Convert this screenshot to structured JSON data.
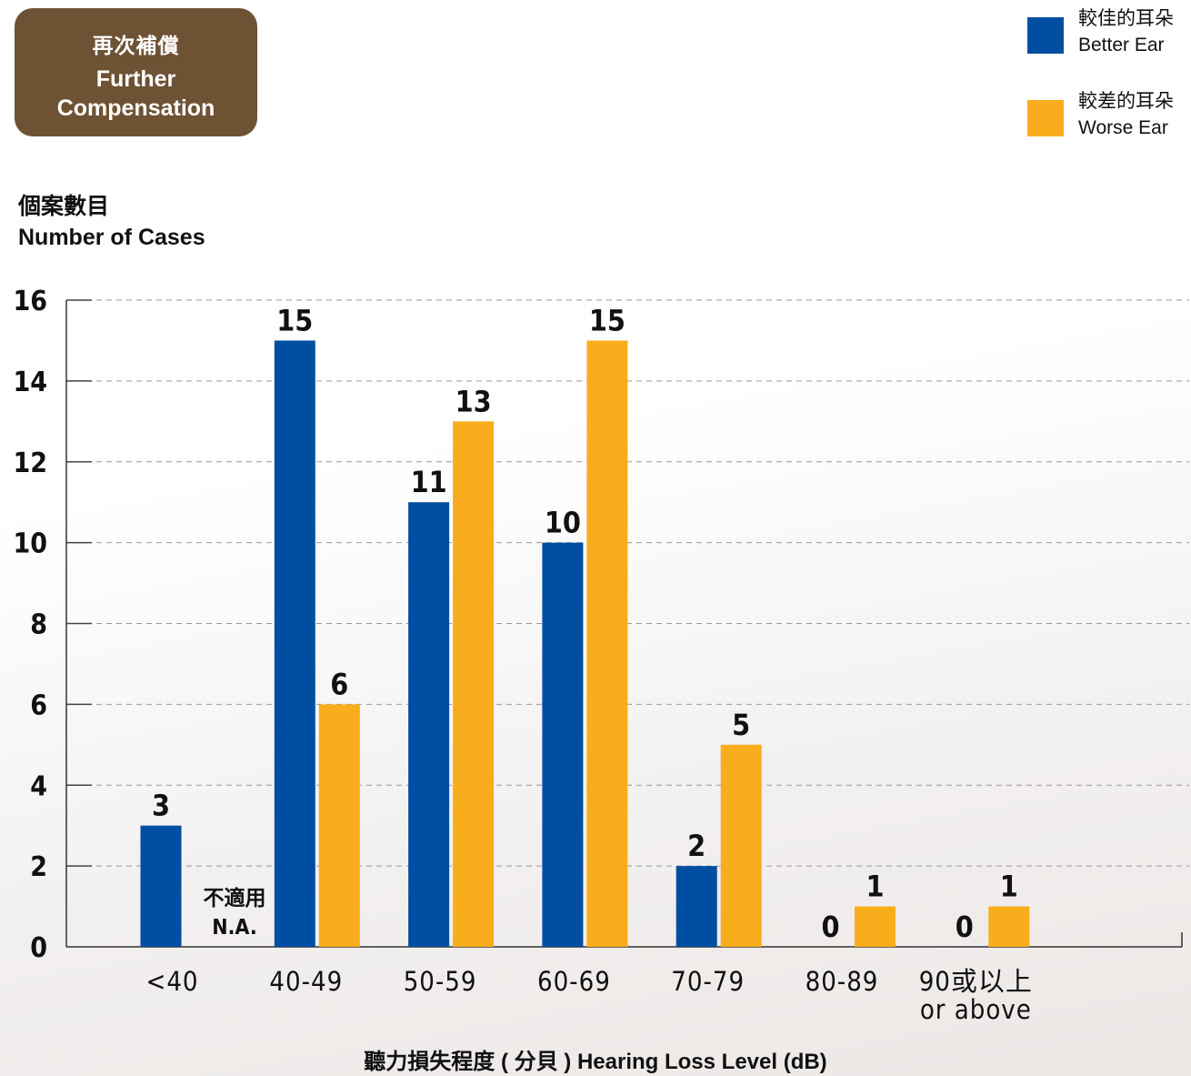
{
  "badge": {
    "title_zh": "再次補償",
    "title_en": "Further Compensation"
  },
  "legend": [
    {
      "zh": "較佳的耳朵",
      "en": "Better Ear",
      "color": "#004ea2"
    },
    {
      "zh": "較差的耳朵",
      "en": "Worse Ear",
      "color": "#f9ad1c"
    }
  ],
  "chart_data": {
    "type": "bar",
    "ylabel_zh": "個案數目",
    "ylabel": "Number of Cases",
    "xlabel": "聽力損失程度 ( 分貝 ) Hearing Loss Level (dB)",
    "categories": [
      "<40",
      "40-49",
      "50-59",
      "60-69",
      "70-79",
      "80-89",
      "90或以上"
    ],
    "category_sublabels": [
      "",
      "",
      "",
      "",
      "",
      "",
      "or above"
    ],
    "ylim": [
      0,
      16
    ],
    "yticks": [
      0,
      2,
      4,
      6,
      8,
      10,
      12,
      14,
      16
    ],
    "grid": true,
    "legend_position": "top-right",
    "series": [
      {
        "name": "Better Ear",
        "color": "#004ea2",
        "values": [
          3,
          15,
          11,
          10,
          2,
          0,
          0
        ]
      },
      {
        "name": "Worse Ear",
        "color": "#f9ad1c",
        "values": [
          null,
          6,
          13,
          15,
          5,
          1,
          1
        ]
      }
    ],
    "na_label_zh": "不適用",
    "na_label_en": "N.A."
  }
}
